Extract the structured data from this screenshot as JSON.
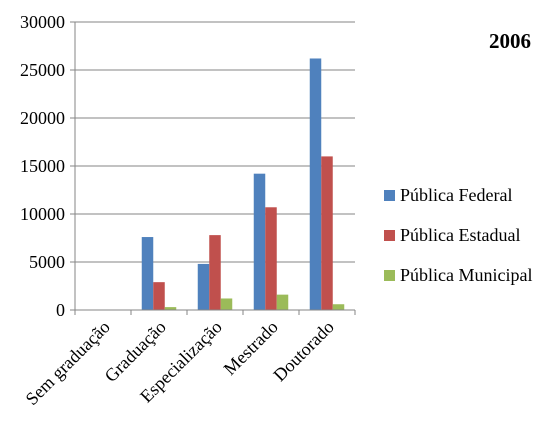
{
  "chart_data": {
    "type": "bar",
    "title": "2006",
    "categories": [
      "Sem graduação",
      "Graduação",
      "Especialização",
      "Mestrado",
      "Doutorado"
    ],
    "series": [
      {
        "name": "Pública Federal",
        "color": "#4f81bd",
        "values": [
          0,
          7600,
          4800,
          14200,
          26200
        ]
      },
      {
        "name": "Pública Estadual",
        "color": "#c0504d",
        "values": [
          0,
          2900,
          7800,
          10700,
          16000
        ]
      },
      {
        "name": "Pública Municipal",
        "color": "#9bbb59",
        "values": [
          0,
          300,
          1200,
          1600,
          600
        ]
      }
    ],
    "ylim": [
      0,
      30000
    ],
    "yticks": [
      0,
      5000,
      10000,
      15000,
      20000,
      25000,
      30000
    ],
    "grid": true,
    "legend": "right"
  }
}
